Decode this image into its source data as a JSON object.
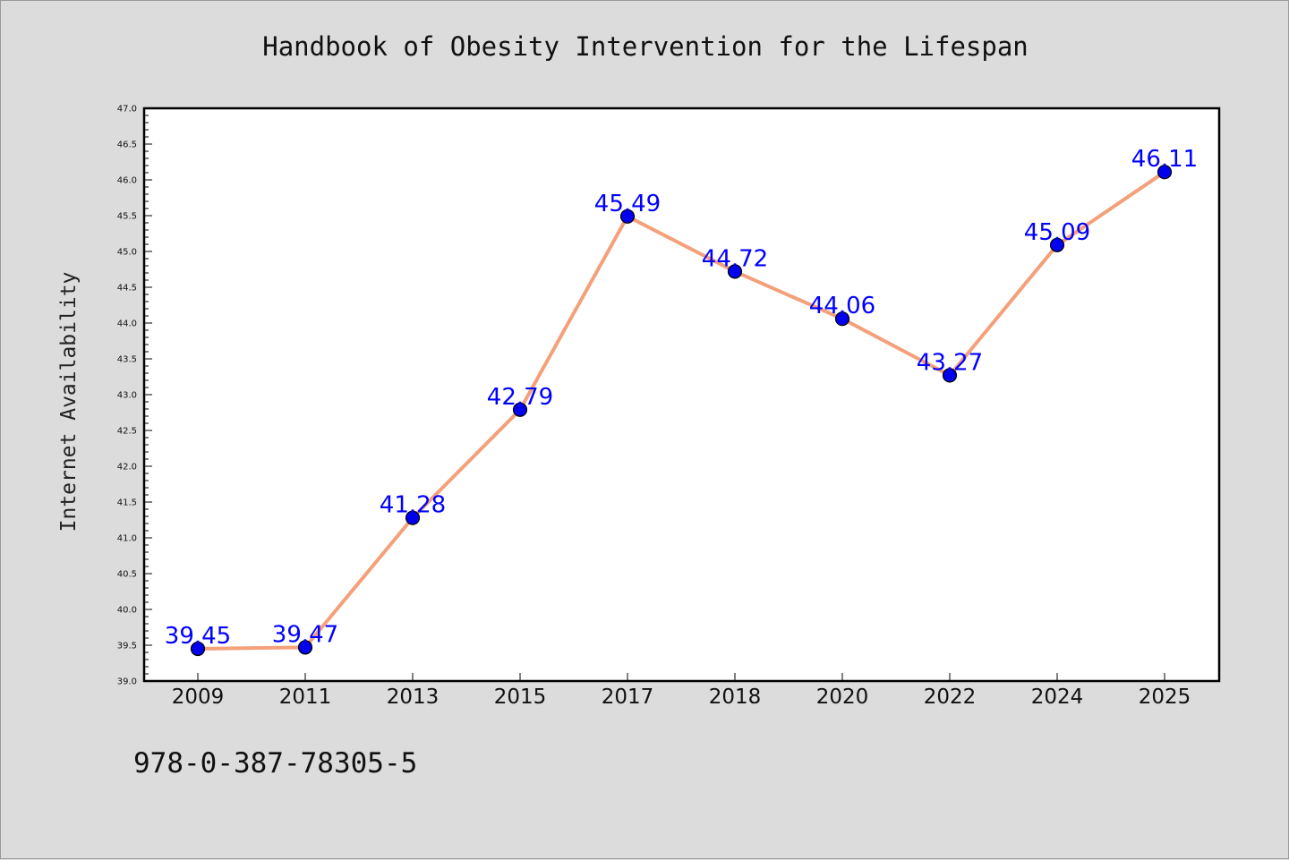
{
  "chart_data": {
    "type": "line",
    "title": "Handbook of Obesity Intervention for the Lifespan",
    "xlabel": "",
    "ylabel": "Internet Availability",
    "categories": [
      "2009",
      "2011",
      "2013",
      "2015",
      "2017",
      "2018",
      "2020",
      "2022",
      "2024",
      "2025"
    ],
    "series": [
      {
        "values": [
          39.45,
          39.47,
          41.28,
          42.79,
          45.49,
          44.72,
          44.06,
          43.27,
          45.09,
          46.11
        ]
      }
    ],
    "data_labels": [
      "39.45",
      "39.47",
      "41.28",
      "42.79",
      "45.49",
      "44.72",
      "44.06",
      "43.27",
      "45.09",
      "46.11"
    ],
    "ylim": [
      39.0,
      47.0
    ],
    "y_ticks": [
      "39.0",
      "39.5",
      "40.0",
      "40.5",
      "41.0",
      "41.5",
      "42.0",
      "42.5",
      "43.0",
      "43.5",
      "44.0",
      "44.5",
      "45.0",
      "45.5",
      "46.0",
      "46.5",
      "47.0"
    ],
    "grid": false,
    "line_color": "#f4a07a",
    "marker_color": "#0000ee",
    "label_color": "#0000ff"
  },
  "footer": {
    "isbn": "978-0-387-78305-5"
  }
}
